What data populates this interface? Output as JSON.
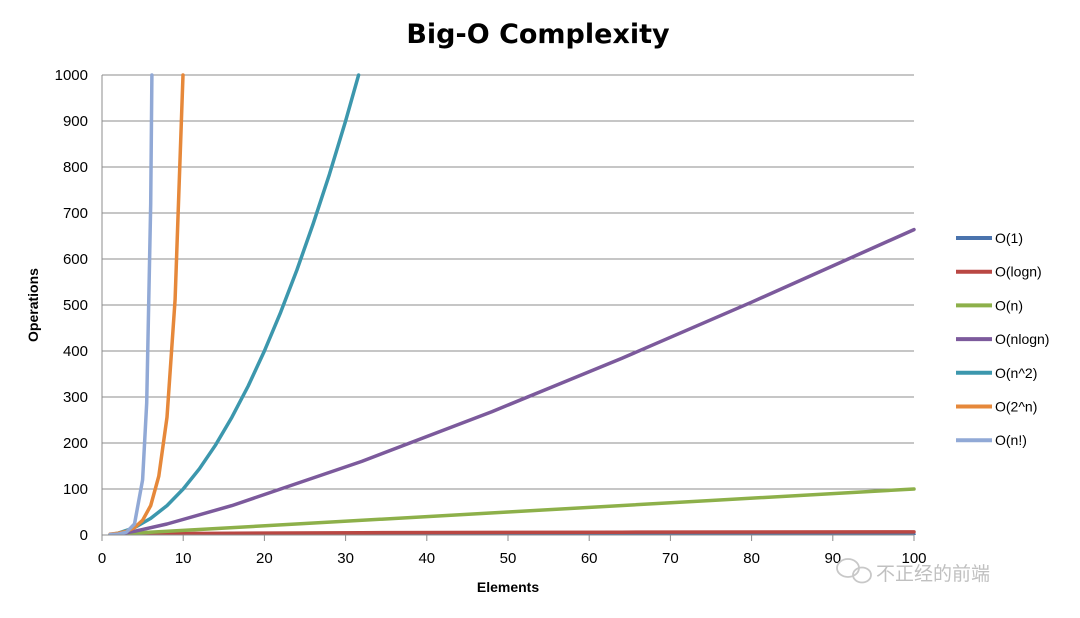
{
  "chart_data": {
    "type": "line",
    "title": "Big-O Complexity",
    "xlabel": "Elements",
    "ylabel": "Operations",
    "xlim": [
      0,
      100
    ],
    "ylim": [
      0,
      1000
    ],
    "x_ticks": [
      0,
      10,
      20,
      30,
      40,
      50,
      60,
      70,
      80,
      90,
      100
    ],
    "y_ticks": [
      0,
      100,
      200,
      300,
      400,
      500,
      600,
      700,
      800,
      900,
      1000
    ],
    "grid": "horizontal",
    "legend_position": "right",
    "series": [
      {
        "name": "O(1)",
        "color": "#4a73ad",
        "points": [
          [
            1,
            1
          ],
          [
            100,
            1
          ]
        ]
      },
      {
        "name": "O(logn)",
        "color": "#b94743",
        "points": [
          [
            1,
            0
          ],
          [
            2,
            1
          ],
          [
            4,
            2
          ],
          [
            8,
            3
          ],
          [
            16,
            4
          ],
          [
            32,
            5
          ],
          [
            64,
            6
          ],
          [
            100,
            6.64
          ]
        ]
      },
      {
        "name": "O(n)",
        "color": "#8db04a",
        "points": [
          [
            1,
            1
          ],
          [
            25,
            25
          ],
          [
            50,
            50
          ],
          [
            75,
            75
          ],
          [
            100,
            100
          ]
        ]
      },
      {
        "name": "O(nlogn)",
        "color": "#7c5a9c",
        "points": [
          [
            1,
            0
          ],
          [
            2,
            2
          ],
          [
            4,
            8
          ],
          [
            8,
            24
          ],
          [
            16,
            64
          ],
          [
            32,
            160
          ],
          [
            48,
            268
          ],
          [
            64,
            384
          ],
          [
            80,
            506
          ],
          [
            100,
            664
          ]
        ]
      },
      {
        "name": "O(n^2)",
        "color": "#3c97ad",
        "points": [
          [
            1,
            1
          ],
          [
            2,
            4
          ],
          [
            4,
            16
          ],
          [
            6,
            36
          ],
          [
            8,
            64
          ],
          [
            10,
            100
          ],
          [
            12,
            144
          ],
          [
            14,
            196
          ],
          [
            16,
            256
          ],
          [
            18,
            324
          ],
          [
            20,
            400
          ],
          [
            22,
            484
          ],
          [
            24,
            576
          ],
          [
            26,
            676
          ],
          [
            28,
            784
          ],
          [
            30,
            900
          ],
          [
            31.6,
            1000
          ]
        ]
      },
      {
        "name": "O(2^n)",
        "color": "#e6883a",
        "points": [
          [
            1,
            2
          ],
          [
            2,
            4
          ],
          [
            3,
            8
          ],
          [
            4,
            16
          ],
          [
            5,
            32
          ],
          [
            6,
            64
          ],
          [
            7,
            128
          ],
          [
            8,
            256
          ],
          [
            9,
            512
          ],
          [
            9.97,
            1000
          ]
        ]
      },
      {
        "name": "O(n!)",
        "color": "#91a9d6",
        "points": [
          [
            1,
            1
          ],
          [
            2,
            2
          ],
          [
            3,
            6
          ],
          [
            4,
            24
          ],
          [
            5,
            120
          ],
          [
            5.5,
            287
          ],
          [
            6,
            720
          ],
          [
            6.15,
            1000
          ]
        ]
      }
    ]
  },
  "watermark": "不正经的前端"
}
